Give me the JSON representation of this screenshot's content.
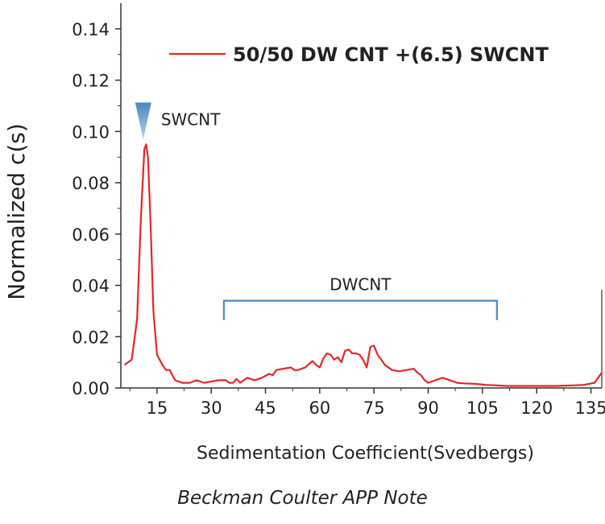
{
  "chart_data": {
    "type": "line",
    "title": "",
    "xlabel": "Sedimentation Coefficient(Svedbergs)",
    "ylabel": "Normalized c(s)",
    "xlim": [
      5,
      138
    ],
    "ylim": [
      0,
      0.15
    ],
    "x_ticks": [
      15,
      30,
      45,
      60,
      75,
      90,
      105,
      120,
      135
    ],
    "x_tick_labels": [
      "15",
      "30",
      "45",
      "60",
      "75",
      "90",
      "105",
      "120",
      "135"
    ],
    "y_ticks": [
      0,
      0.02,
      0.04,
      0.06,
      0.08,
      0.1,
      0.12,
      0.14
    ],
    "y_tick_labels": [
      "0.00",
      "0.02",
      "0.04",
      "0.06",
      "0.08",
      "0.10",
      "0.12",
      "0.14"
    ],
    "grid": false,
    "legend_position": "top-right",
    "series": [
      {
        "name": "50/50 DW CNT +(6.5) SWCNT",
        "color": "#e3262b",
        "x": [
          6,
          8,
          9.5,
          10.5,
          11.5,
          12,
          12.5,
          13.2,
          14,
          15,
          16.5,
          17.5,
          18.5,
          20,
          22,
          24,
          26,
          28,
          30,
          32,
          34,
          35,
          36,
          37,
          38,
          39,
          40,
          42,
          44,
          46,
          47,
          48,
          50,
          52,
          53,
          54,
          56,
          58,
          59,
          60,
          61,
          62,
          63,
          64,
          65,
          66,
          67,
          68,
          69,
          70,
          71,
          72,
          73,
          74,
          75,
          76,
          77,
          78,
          80,
          82,
          84,
          86,
          87,
          88,
          89,
          90,
          92,
          94,
          96,
          98,
          100,
          103,
          106,
          109,
          112,
          115,
          120,
          125,
          130,
          133,
          136,
          138
        ],
        "values": [
          0.009,
          0.011,
          0.027,
          0.065,
          0.093,
          0.095,
          0.09,
          0.065,
          0.03,
          0.013,
          0.009,
          0.007,
          0.007,
          0.003,
          0.002,
          0.002,
          0.003,
          0.002,
          0.0025,
          0.003,
          0.003,
          0.002,
          0.002,
          0.0035,
          0.002,
          0.003,
          0.004,
          0.003,
          0.004,
          0.0055,
          0.005,
          0.007,
          0.0075,
          0.008,
          0.007,
          0.007,
          0.008,
          0.0105,
          0.009,
          0.008,
          0.0115,
          0.0135,
          0.013,
          0.011,
          0.012,
          0.01,
          0.0145,
          0.015,
          0.0135,
          0.0135,
          0.013,
          0.011,
          0.008,
          0.016,
          0.0165,
          0.013,
          0.011,
          0.009,
          0.007,
          0.0065,
          0.007,
          0.0075,
          0.006,
          0.005,
          0.003,
          0.002,
          0.003,
          0.004,
          0.003,
          0.002,
          0.0018,
          0.0016,
          0.0012,
          0.001,
          0.0008,
          0.0008,
          0.0008,
          0.0008,
          0.001,
          0.0012,
          0.002,
          0.006
        ]
      }
    ],
    "annotations": [
      {
        "text": "SWCNT",
        "x": 11.2,
        "y": 0.1
      },
      {
        "text": "DWCNT",
        "x_start": 33.5,
        "x_end": 109,
        "y": 0.034
      }
    ]
  },
  "source_note": "Beckman Coulter APP Note",
  "colors": {
    "series": "#e3262b",
    "bracket": "#4a8cc2",
    "marker_top": "#4a86bd",
    "marker_bottom": "#a9c9e6",
    "axis": "#333333"
  }
}
